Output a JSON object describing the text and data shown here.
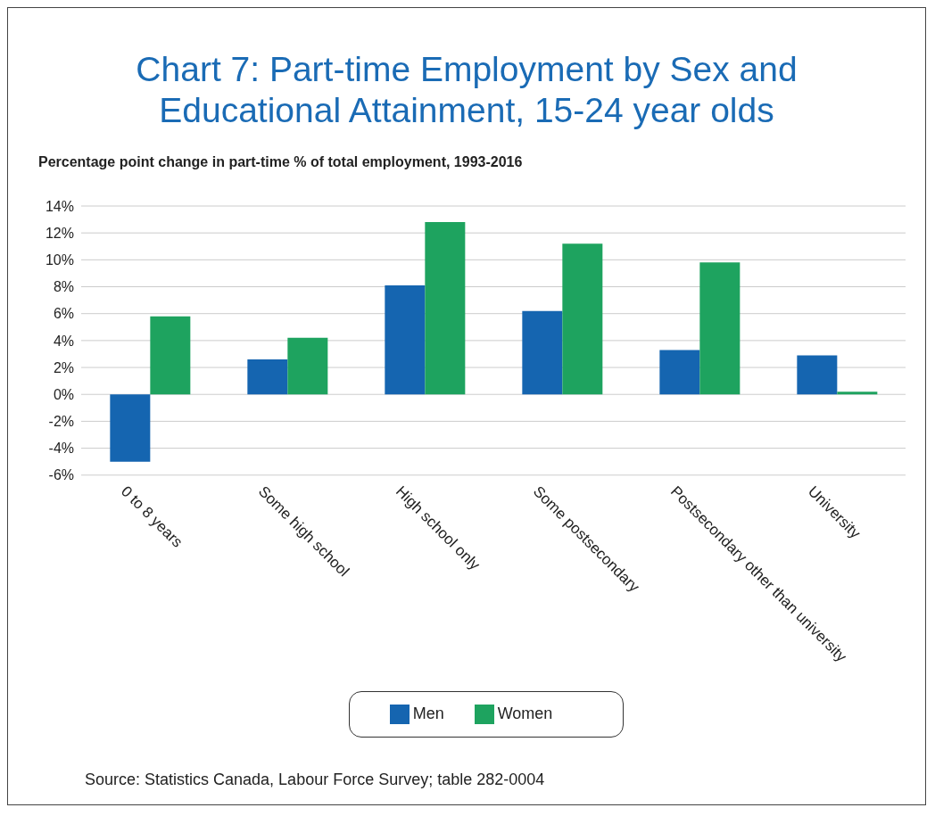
{
  "chart_data": {
    "type": "bar",
    "title": "Chart 7: Part-time Employment by Sex and Educational Attainment, 15-24 year olds",
    "subtitle": "Percentage point change in part-time % of total employment, 1993-2016",
    "categories": [
      "0 to 8 years",
      "Some high school",
      "High school only",
      "Some postsecondary",
      "Postsecondary other than university",
      "University"
    ],
    "series": [
      {
        "name": "Men",
        "color": "#1565b0",
        "values": [
          -5.0,
          2.6,
          8.1,
          6.2,
          3.3,
          2.9
        ]
      },
      {
        "name": "Women",
        "color": "#1ea35f",
        "values": [
          5.8,
          4.2,
          12.8,
          11.2,
          9.8,
          0.2
        ]
      }
    ],
    "ylim": [
      -6,
      14
    ],
    "yticks": [
      {
        "value": -6,
        "label": "-6%"
      },
      {
        "value": -4,
        "label": "-4%"
      },
      {
        "value": -2,
        "label": "-2%"
      },
      {
        "value": 0,
        "label": "0%"
      },
      {
        "value": 2,
        "label": "2%"
      },
      {
        "value": 4,
        "label": "4%"
      },
      {
        "value": 6,
        "label": "6%"
      },
      {
        "value": 8,
        "label": "8%"
      },
      {
        "value": 10,
        "label": "10%"
      },
      {
        "value": 12,
        "label": "12%"
      },
      {
        "value": 14,
        "label": "14%"
      }
    ],
    "grid": "y",
    "legend": "bottom",
    "annotations": [
      "Source: Statistics Canada, Labour Force Survey; table 282-0004"
    ]
  }
}
